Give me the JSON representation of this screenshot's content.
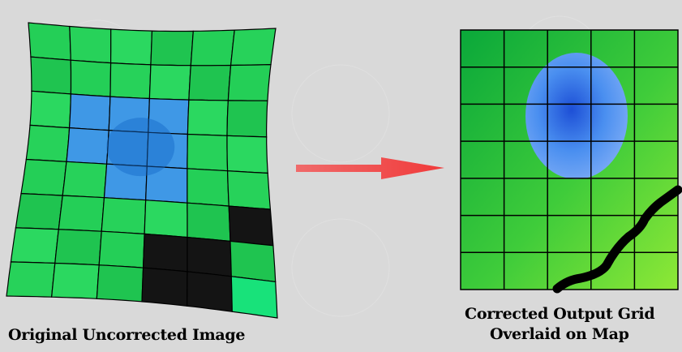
{
  "left_panel": {
    "caption": "Original Uncorrected Image"
  },
  "right_panel": {
    "caption_line1": "Corrected Output Grid",
    "caption_line2": "Overlaid on Map"
  },
  "arrow": {
    "icon": "right-arrow-icon",
    "color": "#f04a4a"
  },
  "colors": {
    "grid_green": "#22cc55",
    "water_blue": "#3a8cf0",
    "dark_cells": "#111111",
    "background": "#d9d9d9"
  }
}
